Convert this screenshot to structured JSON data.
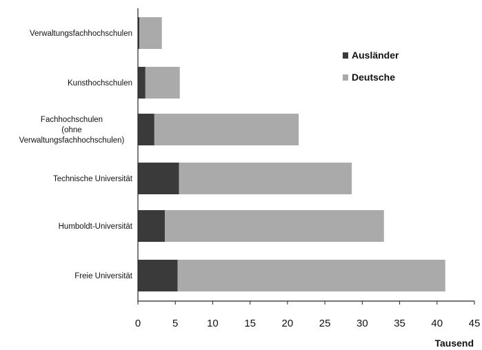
{
  "chart_data": {
    "type": "bar",
    "orientation": "horizontal",
    "stacked": true,
    "categories": [
      [
        "Verwaltungsfachhochschulen"
      ],
      [
        "Kunsthochschulen"
      ],
      [
        "Fachhochschulen",
        "(ohne",
        "Verwaltungsfachhochschulen)"
      ],
      [
        "Technische Universität"
      ],
      [
        "Humboldt-Universität"
      ],
      [
        "Freie Universität"
      ]
    ],
    "series": [
      {
        "name": "Ausländer",
        "color": "#3a3a3a",
        "values": [
          0.2,
          1.0,
          2.2,
          5.5,
          3.6,
          5.3
        ]
      },
      {
        "name": "Deutsche",
        "color": "#aaaaaa",
        "values": [
          3.0,
          4.6,
          19.3,
          23.1,
          29.3,
          35.8
        ]
      }
    ],
    "xlim": [
      0,
      45
    ],
    "xticks": [
      "0",
      "5",
      "10",
      "15",
      "20",
      "25",
      "30",
      "35",
      "40",
      "45"
    ],
    "xlabel": "Tausend",
    "legend_position": "top-right",
    "grid": false
  }
}
